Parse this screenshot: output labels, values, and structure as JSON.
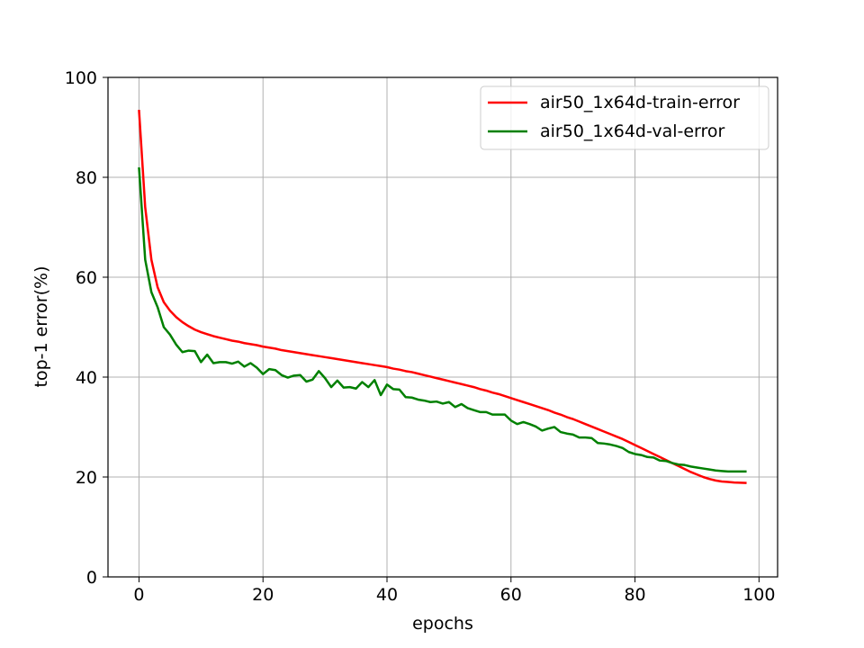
{
  "chart_data": {
    "type": "line",
    "title": "",
    "xlabel": "epochs",
    "ylabel": "top-1 error(%)",
    "xlim": [
      -5,
      103
    ],
    "ylim": [
      0,
      100
    ],
    "xticks": [
      0,
      20,
      40,
      60,
      80,
      100
    ],
    "yticks": [
      0,
      20,
      40,
      60,
      80,
      100
    ],
    "grid": true,
    "legend_position": "upper-right",
    "x": [
      0,
      1,
      2,
      3,
      4,
      5,
      6,
      7,
      8,
      9,
      10,
      11,
      12,
      13,
      14,
      15,
      16,
      17,
      18,
      19,
      20,
      21,
      22,
      23,
      24,
      25,
      26,
      27,
      28,
      29,
      30,
      31,
      32,
      33,
      34,
      35,
      36,
      37,
      38,
      39,
      40,
      41,
      42,
      43,
      44,
      45,
      46,
      47,
      48,
      49,
      50,
      51,
      52,
      53,
      54,
      55,
      56,
      57,
      58,
      59,
      60,
      61,
      62,
      63,
      64,
      65,
      66,
      67,
      68,
      69,
      70,
      71,
      72,
      73,
      74,
      75,
      76,
      77,
      78,
      79,
      80,
      81,
      82,
      83,
      84,
      85,
      86,
      87,
      88,
      89,
      90,
      91,
      92,
      93,
      94,
      95,
      96,
      97,
      98
    ],
    "series": [
      {
        "name": "air50_1x64d-train-error",
        "color": "#ff0000",
        "values": [
          93.5,
          74,
          63.5,
          58,
          55,
          53.3,
          52,
          51,
          50.2,
          49.5,
          49,
          48.6,
          48.2,
          47.9,
          47.6,
          47.3,
          47.1,
          46.8,
          46.6,
          46.4,
          46.1,
          45.9,
          45.7,
          45.4,
          45.2,
          45,
          44.8,
          44.6,
          44.4,
          44.2,
          44,
          43.8,
          43.6,
          43.4,
          43.2,
          43,
          42.8,
          42.6,
          42.4,
          42.2,
          42,
          41.7,
          41.5,
          41.2,
          41,
          40.7,
          40.4,
          40.1,
          39.8,
          39.5,
          39.2,
          38.9,
          38.6,
          38.3,
          38,
          37.6,
          37.3,
          36.9,
          36.6,
          36.2,
          35.8,
          35.4,
          35,
          34.6,
          34.2,
          33.8,
          33.4,
          32.9,
          32.5,
          32,
          31.6,
          31.1,
          30.6,
          30.1,
          29.6,
          29.1,
          28.6,
          28.1,
          27.6,
          27,
          26.4,
          25.8,
          25.2,
          24.6,
          24,
          23.4,
          22.8,
          22.2,
          21.6,
          21,
          20.5,
          20,
          19.6,
          19.3,
          19.1,
          19,
          18.9,
          18.85,
          18.8
        ]
      },
      {
        "name": "air50_1x64d-val-error",
        "color": "#008000",
        "values": [
          82,
          63.5,
          57,
          54,
          50,
          48.5,
          46.5,
          45,
          45.3,
          45.2,
          43,
          44.5,
          42.8,
          43,
          43,
          42.7,
          43.1,
          42.1,
          42.8,
          41.9,
          40.6,
          41.6,
          41.4,
          40.4,
          39.9,
          40.3,
          40.4,
          39.1,
          39.5,
          41.2,
          39.8,
          38,
          39.3,
          37.9,
          38,
          37.7,
          39,
          38,
          39.4,
          36.4,
          38.5,
          37.6,
          37.5,
          36,
          35.9,
          35.5,
          35.3,
          35,
          35.1,
          34.7,
          35,
          34,
          34.6,
          33.8,
          33.4,
          33,
          33,
          32.5,
          32.5,
          32.5,
          31.3,
          30.6,
          31,
          30.6,
          30.1,
          29.3,
          29.7,
          30,
          29,
          28.7,
          28.5,
          27.9,
          27.9,
          27.8,
          26.8,
          26.7,
          26.5,
          26.2,
          25.8,
          25,
          24.6,
          24.4,
          24,
          23.9,
          23.3,
          23.2,
          22.8,
          22.5,
          22.4,
          22.1,
          21.9,
          21.7,
          21.5,
          21.3,
          21.2,
          21.1,
          21.1,
          21.1,
          21.1
        ]
      }
    ]
  }
}
